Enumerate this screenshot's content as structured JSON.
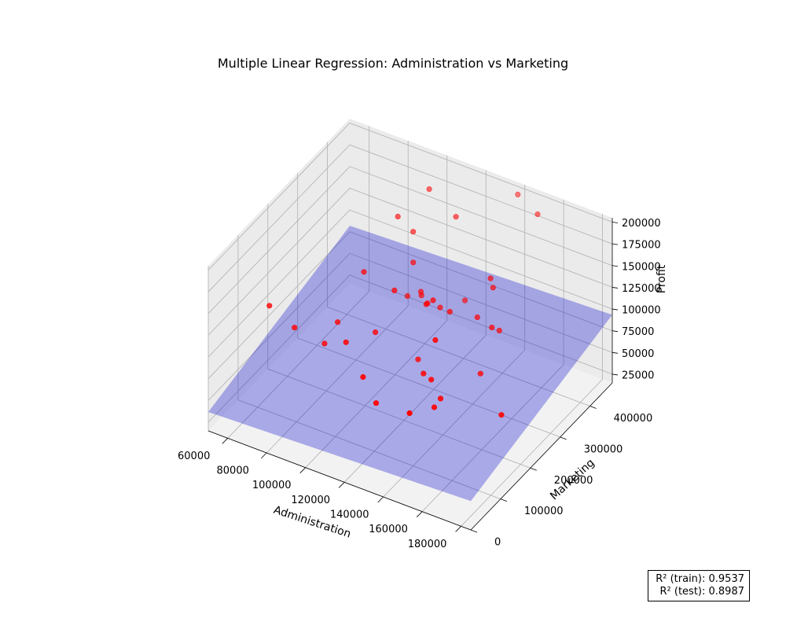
{
  "chart_data": {
    "type": "scatter",
    "title": "Multiple Linear Regression: Administration vs Marketing",
    "xlabel": "Administration",
    "ylabel": "Marketing",
    "zlabel": "Profit",
    "x_ticks": [
      60000,
      80000,
      100000,
      120000,
      140000,
      160000,
      180000
    ],
    "y_ticks": [
      0,
      100000,
      200000,
      300000,
      400000
    ],
    "z_ticks": [
      25000,
      50000,
      75000,
      100000,
      125000,
      150000,
      175000,
      200000
    ],
    "xlim": [
      50000,
      185000
    ],
    "ylim": [
      0,
      475000
    ],
    "zlim": [
      15000,
      205000
    ],
    "grid": true,
    "colors": {
      "points": "#ff0000",
      "plane": "#0000cc",
      "pane_floor": "#f2f2f2",
      "pane_wall": "#ebebeb",
      "grid": "#b0b0b0"
    },
    "series": [
      {
        "type": "scatter",
        "x": [
          136898,
          151378,
          101146,
          118672,
          91392,
          99814,
          147199,
          145530,
          148719,
          108679,
          110595,
          91791,
          127320,
          135495,
          156547,
          122616,
          121598,
          145078,
          114176,
          153514,
          113867,
          153773,
          122783,
          105751,
          99281,
          139553,
          144136,
          127865,
          182646,
          153032,
          115642,
          152701,
          129220,
          103057,
          157694,
          85048,
          127056,
          51283,
          65947,
          82983
        ],
        "y": [
          471784,
          443899,
          407935,
          383200,
          366168,
          362861,
          127717,
          323877,
          311613,
          304982,
          229161,
          249745,
          249840,
          252665,
          256513,
          261777,
          264346,
          282574,
          294920,
          0,
          298664,
          299737,
          303319,
          304768,
          140574,
          137962,
          134051,
          353184,
          118148,
          107138,
          91131,
          88219,
          46086,
          214635,
          210798,
          205518,
          201127,
          197029,
          185265,
          174999
        ],
        "z": [
          192262,
          191792,
          191050,
          182902,
          166188,
          156991,
          156123,
          155753,
          152212,
          149760,
          146122,
          144259,
          141586,
          134307,
          132602,
          129917,
          126993,
          125370,
          124267,
          122777,
          118474,
          111313,
          110352,
          108734,
          108552,
          107404,
          105734,
          105008,
          103282,
          101005,
          99938,
          97484,
          97427,
          96779,
          96712,
          96479,
          90708,
          89949,
          81230,
          81006
        ]
      }
    ],
    "plane": {
      "intercept": 32500,
      "coef_administration": 0.085,
      "coef_marketing": 0.095
    },
    "annotation": [
      "R² (train): 0.9537",
      "R² (test): 0.8987"
    ]
  }
}
